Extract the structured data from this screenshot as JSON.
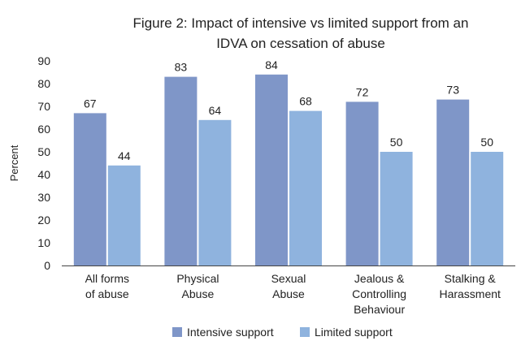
{
  "chart_data": {
    "type": "bar",
    "title": [
      "Figure 2: Impact of intensive vs limited support from an",
      "IDVA on cessation of abuse"
    ],
    "ylabel": "Percent",
    "xlabel": "",
    "ylim": [
      0,
      90
    ],
    "yticks": [
      0,
      10,
      20,
      30,
      40,
      50,
      60,
      70,
      80,
      90
    ],
    "grid": false,
    "legend_position": "bottom",
    "categories": [
      [
        "All forms",
        "of abuse"
      ],
      [
        "Physical",
        "Abuse"
      ],
      [
        "Sexual",
        "Abuse"
      ],
      [
        "Jealous &",
        "Controlling",
        "Behaviour"
      ],
      [
        "Stalking &",
        "Harassment"
      ]
    ],
    "series": [
      {
        "name": "Intensive support",
        "color": "#7f96c8",
        "values": [
          67,
          83,
          84,
          72,
          73
        ]
      },
      {
        "name": "Limited support",
        "color": "#8fb3de",
        "values": [
          44,
          64,
          68,
          50,
          50
        ]
      }
    ]
  }
}
